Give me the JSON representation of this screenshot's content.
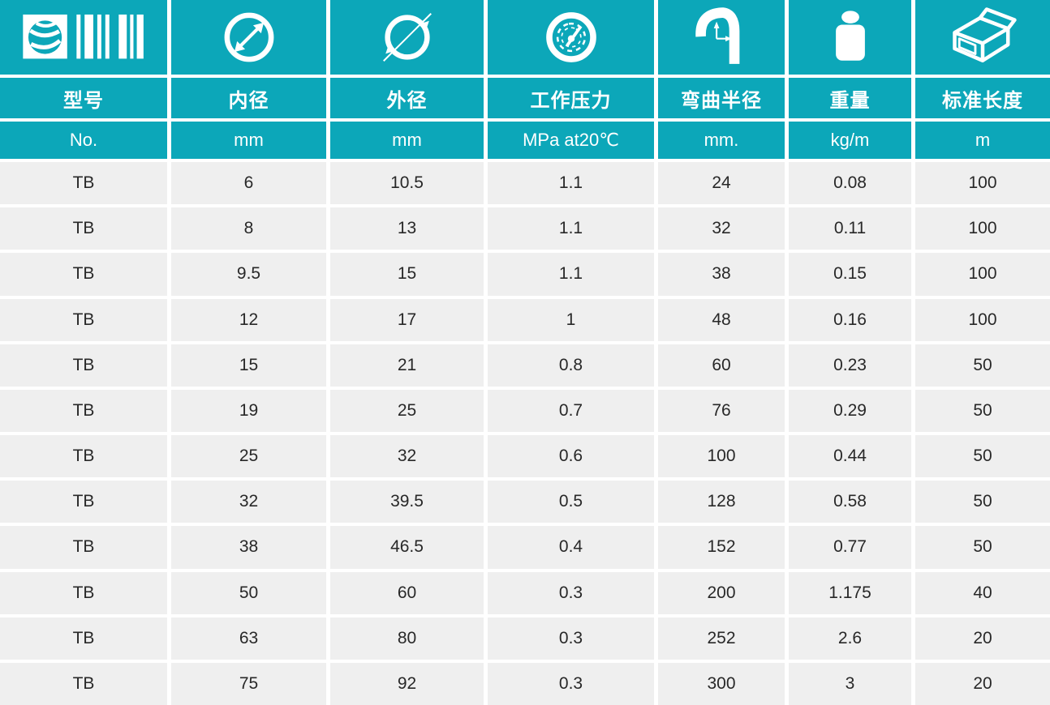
{
  "theme": {
    "teal": "#0ca7b9",
    "row_bg": "#efefef",
    "text_dark": "#282828",
    "header_text": "#ffffff"
  },
  "table": {
    "columns": [
      {
        "icon": "logo-barcode-icon",
        "label": "型号",
        "unit": "No."
      },
      {
        "icon": "inner-diameter-icon",
        "label": "内径",
        "unit": "mm"
      },
      {
        "icon": "outer-diameter-icon",
        "label": "外径",
        "unit": "mm"
      },
      {
        "icon": "pressure-gauge-icon",
        "label": "工作压力",
        "unit": "MPa at20℃"
      },
      {
        "icon": "bend-radius-icon",
        "label": "弯曲半径",
        "unit": "mm."
      },
      {
        "icon": "weight-icon",
        "label": "重量",
        "unit": "kg/m"
      },
      {
        "icon": "box-icon",
        "label": "标准长度",
        "unit": "m"
      }
    ],
    "rows": [
      [
        "TB",
        "6",
        "10.5",
        "1.1",
        "24",
        "0.08",
        "100"
      ],
      [
        "TB",
        "8",
        "13",
        "1.1",
        "32",
        "0.11",
        "100"
      ],
      [
        "TB",
        "9.5",
        "15",
        "1.1",
        "38",
        "0.15",
        "100"
      ],
      [
        "TB",
        "12",
        "17",
        "1",
        "48",
        "0.16",
        "100"
      ],
      [
        "TB",
        "15",
        "21",
        "0.8",
        "60",
        "0.23",
        "50"
      ],
      [
        "TB",
        "19",
        "25",
        "0.7",
        "76",
        "0.29",
        "50"
      ],
      [
        "TB",
        "25",
        "32",
        "0.6",
        "100",
        "0.44",
        "50"
      ],
      [
        "TB",
        "32",
        "39.5",
        "0.5",
        "128",
        "0.58",
        "50"
      ],
      [
        "TB",
        "38",
        "46.5",
        "0.4",
        "152",
        "0.77",
        "50"
      ],
      [
        "TB",
        "50",
        "60",
        "0.3",
        "200",
        "1.175",
        "40"
      ],
      [
        "TB",
        "63",
        "80",
        "0.3",
        "252",
        "2.6",
        "20"
      ],
      [
        "TB",
        "75",
        "92",
        "0.3",
        "300",
        "3",
        "20"
      ]
    ]
  }
}
